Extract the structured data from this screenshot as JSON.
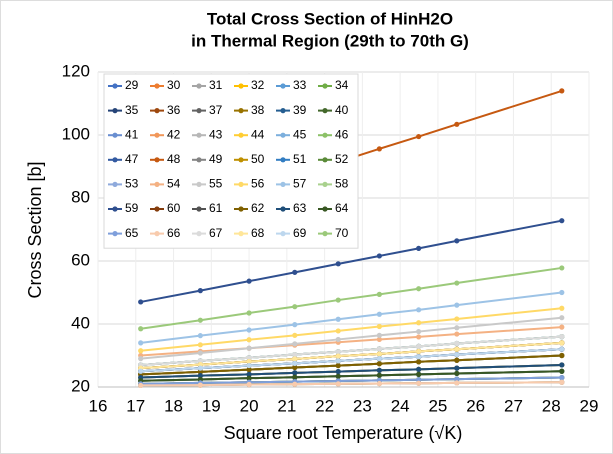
{
  "chart_data": {
    "type": "line",
    "title": "Total Cross Section of HinH2O",
    "subtitle": "in Thermal Region (29th to 70th G)",
    "x_label": "Square root Temperature (√K)",
    "y_label": "Cross Section [b]",
    "x": [
      17.13,
      18.71,
      20,
      21.21,
      22.36,
      23.45,
      24.49,
      25.5,
      28.28
    ],
    "xlim": [
      16,
      29
    ],
    "xticks": [
      16,
      17,
      18,
      19,
      20,
      21,
      22,
      23,
      24,
      25,
      26,
      27,
      28,
      29
    ],
    "ylim": [
      20,
      120
    ],
    "yticks": [
      20,
      40,
      60,
      80,
      100,
      120
    ],
    "grid": true,
    "legend": "top-left",
    "series": [
      {
        "name": "29",
        "color": "#4472c4",
        "values": [
          27.0,
          28.3,
          29.3,
          30.3,
          31.2,
          32.1,
          32.9,
          33.8,
          36.0
        ]
      },
      {
        "name": "30",
        "color": "#ed7d31",
        "values": [
          26.0,
          27.1,
          28.1,
          28.9,
          29.8,
          30.5,
          31.3,
          32.0,
          34.0
        ]
      },
      {
        "name": "31",
        "color": "#a5a5a5",
        "values": [
          25.0,
          26.0,
          26.8,
          27.5,
          28.3,
          29.0,
          29.6,
          30.3,
          32.0
        ]
      },
      {
        "name": "32",
        "color": "#ffc000",
        "values": [
          24.0,
          24.8,
          25.5,
          26.2,
          26.8,
          27.4,
          28.0,
          28.5,
          30.0
        ]
      },
      {
        "name": "33",
        "color": "#5b9bd5",
        "values": [
          23.0,
          23.6,
          24.0,
          24.5,
          24.9,
          25.3,
          25.6,
          26.0,
          27.0
        ]
      },
      {
        "name": "34",
        "color": "#70ad47",
        "values": [
          22.0,
          22.4,
          22.8,
          23.1,
          23.4,
          23.7,
          24.0,
          24.3,
          25.0
        ]
      },
      {
        "name": "35",
        "color": "#264478",
        "values": [
          21.0,
          21.3,
          21.5,
          21.7,
          21.9,
          22.1,
          22.3,
          22.5,
          23.0
        ]
      },
      {
        "name": "36",
        "color": "#9e480e",
        "values": [
          20.5,
          20.6,
          20.8,
          20.9,
          21.0,
          21.1,
          21.2,
          21.3,
          21.5
        ]
      },
      {
        "name": "37",
        "color": "#636363",
        "values": [
          27.0,
          28.3,
          29.3,
          30.3,
          31.2,
          32.1,
          32.9,
          33.8,
          36.0
        ]
      },
      {
        "name": "38",
        "color": "#997300",
        "values": [
          26.0,
          27.1,
          28.1,
          28.9,
          29.8,
          30.5,
          31.3,
          32.0,
          34.0
        ]
      },
      {
        "name": "39",
        "color": "#255e91",
        "values": [
          25.0,
          26.0,
          26.8,
          27.5,
          28.3,
          29.0,
          29.6,
          30.3,
          32.0
        ]
      },
      {
        "name": "40",
        "color": "#43682b",
        "values": [
          24.0,
          24.8,
          25.5,
          26.2,
          26.8,
          27.4,
          28.0,
          28.5,
          30.0
        ]
      },
      {
        "name": "41",
        "color": "#698ed0",
        "values": [
          23.0,
          23.6,
          24.0,
          24.5,
          24.9,
          25.3,
          25.6,
          26.0,
          27.0
        ]
      },
      {
        "name": "42",
        "color": "#f1975a",
        "values": [
          22.0,
          22.4,
          22.8,
          23.1,
          23.4,
          23.7,
          24.0,
          24.3,
          25.0
        ]
      },
      {
        "name": "43",
        "color": "#b7b7b7",
        "values": [
          21.0,
          21.3,
          21.5,
          21.7,
          21.9,
          22.1,
          22.3,
          22.5,
          23.0
        ]
      },
      {
        "name": "44",
        "color": "#ffcd33",
        "values": [
          20.5,
          20.6,
          20.8,
          20.9,
          21.0,
          21.1,
          21.2,
          21.3,
          21.5
        ]
      },
      {
        "name": "45",
        "color": "#7cafdd",
        "values": [
          27.0,
          28.3,
          29.3,
          30.3,
          31.2,
          32.1,
          32.9,
          33.8,
          36.0
        ]
      },
      {
        "name": "46",
        "color": "#8cc168",
        "values": [
          26.0,
          27.1,
          28.1,
          28.9,
          29.8,
          30.5,
          31.3,
          32.0,
          34.0
        ]
      },
      {
        "name": "47",
        "color": "#335aa1",
        "values": [
          25.0,
          26.0,
          26.8,
          27.5,
          28.3,
          29.0,
          29.6,
          30.3,
          32.0
        ]
      },
      {
        "name": "48",
        "color": "#c65911",
        "values": [
          71.5,
          77.5,
          82.4,
          87.0,
          91.4,
          95.6,
          99.5,
          103.4,
          114.0
        ]
      },
      {
        "name": "49",
        "color": "#848484",
        "values": [
          24.0,
          24.8,
          25.5,
          26.2,
          26.8,
          27.4,
          28.0,
          28.5,
          30.0
        ]
      },
      {
        "name": "50",
        "color": "#bf9000",
        "values": [
          23.0,
          23.6,
          24.0,
          24.5,
          24.9,
          25.3,
          25.6,
          26.0,
          27.0
        ]
      },
      {
        "name": "51",
        "color": "#327dc2",
        "values": [
          22.0,
          22.4,
          22.8,
          23.1,
          23.4,
          23.7,
          24.0,
          24.3,
          25.0
        ]
      },
      {
        "name": "52",
        "color": "#5a8a39",
        "values": [
          21.0,
          21.3,
          21.5,
          21.7,
          21.9,
          22.1,
          22.3,
          22.5,
          23.0
        ]
      },
      {
        "name": "53",
        "color": "#8faadc",
        "values": [
          20.5,
          20.6,
          20.8,
          20.9,
          21.0,
          21.1,
          21.2,
          21.3,
          21.5
        ]
      },
      {
        "name": "54",
        "color": "#f4b183",
        "values": [
          30.0,
          31.3,
          32.3,
          33.3,
          34.2,
          35.1,
          35.9,
          36.8,
          39.0
        ]
      },
      {
        "name": "55",
        "color": "#c9c9c9",
        "values": [
          29.0,
          30.8,
          32.3,
          33.7,
          35.1,
          36.4,
          37.6,
          38.8,
          42.0
        ]
      },
      {
        "name": "56",
        "color": "#ffd966",
        "values": [
          31.5,
          33.4,
          35.0,
          36.4,
          37.8,
          39.2,
          40.4,
          41.6,
          45.0
        ]
      },
      {
        "name": "57",
        "color": "#9dc3e6",
        "values": [
          34.0,
          36.3,
          38.1,
          39.8,
          41.5,
          43.1,
          44.5,
          46.0,
          50.0
        ]
      },
      {
        "name": "58",
        "color": "#a9d18e",
        "values": [
          27.0,
          28.3,
          29.3,
          30.3,
          31.2,
          32.1,
          32.9,
          33.8,
          36.0
        ]
      },
      {
        "name": "59",
        "color": "#2f4f8f",
        "values": [
          47.0,
          50.6,
          53.6,
          56.4,
          59.1,
          61.6,
          64.0,
          66.4,
          72.8
        ]
      },
      {
        "name": "60",
        "color": "#843c0c",
        "values": [
          26.0,
          27.1,
          28.1,
          28.9,
          29.8,
          30.5,
          31.3,
          32.0,
          34.0
        ]
      },
      {
        "name": "61",
        "color": "#525252",
        "values": [
          25.0,
          26.0,
          26.8,
          27.5,
          28.3,
          29.0,
          29.6,
          30.3,
          32.0
        ]
      },
      {
        "name": "62",
        "color": "#7f6000",
        "values": [
          24.0,
          24.8,
          25.5,
          26.2,
          26.8,
          27.4,
          28.0,
          28.5,
          30.0
        ]
      },
      {
        "name": "63",
        "color": "#1f4e79",
        "values": [
          23.0,
          23.6,
          24.0,
          24.5,
          24.9,
          25.3,
          25.6,
          26.0,
          27.0
        ]
      },
      {
        "name": "64",
        "color": "#385723",
        "values": [
          22.0,
          22.4,
          22.8,
          23.1,
          23.4,
          23.7,
          24.0,
          24.3,
          25.0
        ]
      },
      {
        "name": "65",
        "color": "#7f9fdb",
        "values": [
          21.0,
          21.3,
          21.5,
          21.7,
          21.9,
          22.1,
          22.3,
          22.5,
          23.0
        ]
      },
      {
        "name": "66",
        "color": "#f8cbad",
        "values": [
          20.5,
          20.6,
          20.8,
          20.9,
          21.0,
          21.1,
          21.2,
          21.3,
          21.5
        ]
      },
      {
        "name": "67",
        "color": "#dbdbdb",
        "values": [
          27.0,
          28.3,
          29.3,
          30.3,
          31.2,
          32.1,
          32.9,
          33.8,
          36.0
        ]
      },
      {
        "name": "68",
        "color": "#ffe699",
        "values": [
          26.0,
          27.1,
          28.1,
          28.9,
          29.8,
          30.5,
          31.3,
          32.0,
          34.0
        ]
      },
      {
        "name": "69",
        "color": "#bdd7ee",
        "values": [
          25.0,
          26.0,
          26.8,
          27.5,
          28.3,
          29.0,
          29.6,
          30.3,
          32.0
        ]
      },
      {
        "name": "70",
        "color": "#9bc97a",
        "values": [
          38.5,
          41.2,
          43.5,
          45.5,
          47.6,
          49.4,
          51.2,
          53.0,
          57.8
        ]
      }
    ]
  }
}
